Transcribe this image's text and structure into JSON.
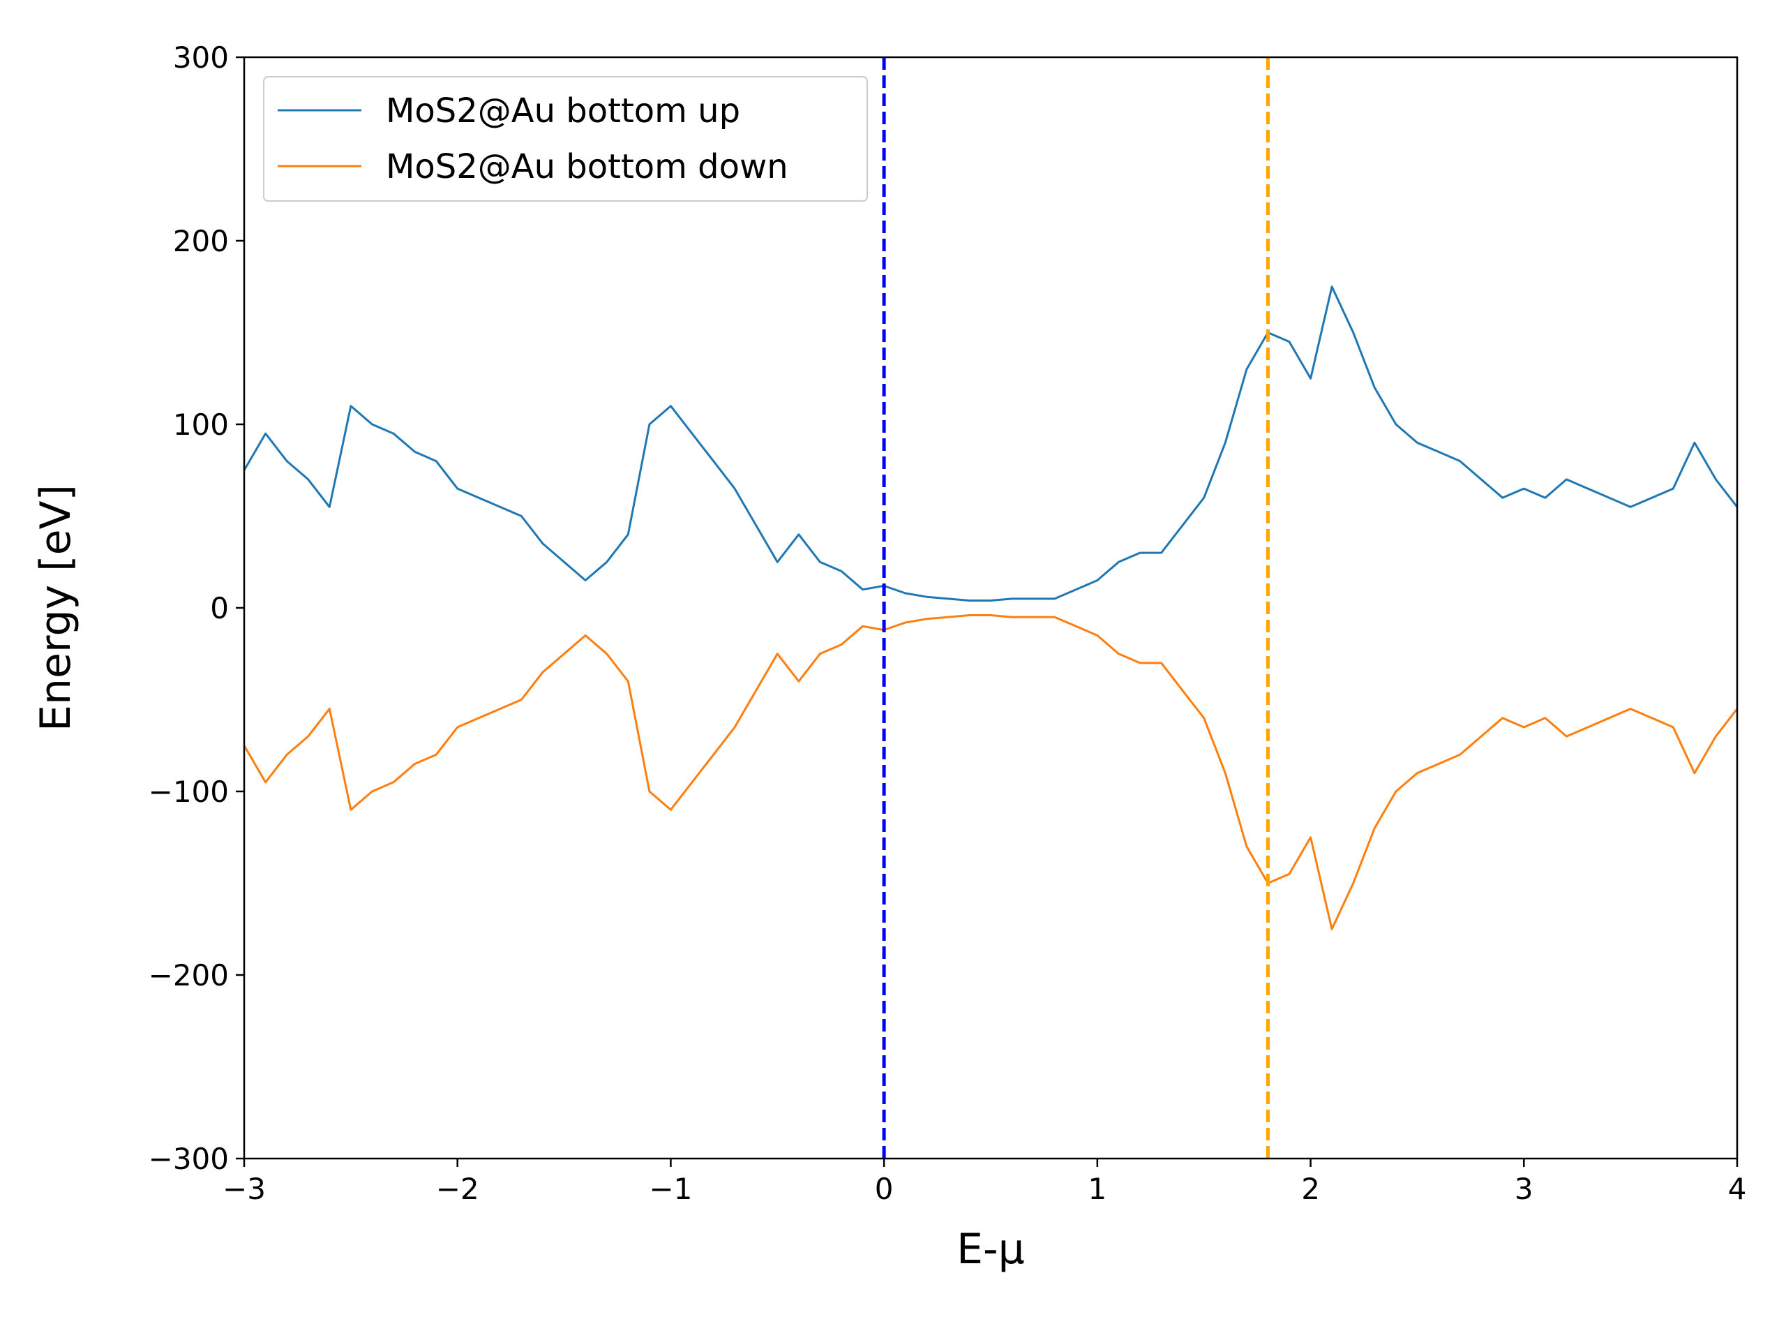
{
  "chart_data": {
    "type": "line",
    "title": "",
    "xlabel": "E-μ",
    "ylabel": "Energy [eV]",
    "xlim": [
      -3,
      4
    ],
    "ylim": [
      -300,
      300
    ],
    "xticks": [
      -3,
      -2,
      -1,
      0,
      1,
      2,
      3,
      4
    ],
    "xtick_labels": [
      "−3",
      "−2",
      "−1",
      "0",
      "1",
      "2",
      "3",
      "4"
    ],
    "yticks": [
      -300,
      -200,
      -100,
      0,
      100,
      200,
      300
    ],
    "ytick_labels": [
      "−300",
      "−200",
      "−100",
      "0",
      "100",
      "200",
      "300"
    ],
    "grid": false,
    "legend_position": "top-left",
    "series": [
      {
        "name": "MoS2@Au bottom up",
        "color": "#1f77b4",
        "x": [
          -3.0,
          -2.9,
          -2.8,
          -2.7,
          -2.6,
          -2.5,
          -2.4,
          -2.3,
          -2.2,
          -2.1,
          -2.0,
          -1.9,
          -1.8,
          -1.7,
          -1.6,
          -1.5,
          -1.4,
          -1.3,
          -1.2,
          -1.1,
          -1.0,
          -0.9,
          -0.8,
          -0.7,
          -0.6,
          -0.5,
          -0.4,
          -0.3,
          -0.2,
          -0.1,
          0.0,
          0.1,
          0.2,
          0.3,
          0.4,
          0.5,
          0.6,
          0.7,
          0.8,
          0.9,
          1.0,
          1.1,
          1.2,
          1.3,
          1.4,
          1.5,
          1.6,
          1.7,
          1.8,
          1.9,
          2.0,
          2.1,
          2.2,
          2.3,
          2.4,
          2.5,
          2.6,
          2.7,
          2.8,
          2.9,
          3.0,
          3.1,
          3.2,
          3.3,
          3.4,
          3.5,
          3.6,
          3.7,
          3.8,
          3.9,
          4.0
        ],
        "y": [
          75,
          95,
          80,
          70,
          55,
          110,
          100,
          95,
          85,
          80,
          65,
          60,
          55,
          50,
          35,
          25,
          15,
          25,
          40,
          100,
          110,
          95,
          80,
          65,
          45,
          25,
          40,
          25,
          20,
          10,
          12,
          8,
          6,
          5,
          4,
          4,
          5,
          5,
          5,
          10,
          15,
          25,
          30,
          30,
          45,
          60,
          90,
          130,
          150,
          145,
          125,
          175,
          150,
          120,
          100,
          90,
          85,
          80,
          70,
          60,
          65,
          60,
          70,
          65,
          60,
          55,
          60,
          65,
          90,
          70,
          55
        ]
      },
      {
        "name": "MoS2@Au bottom down",
        "color": "#ff7f0e",
        "x": [
          -3.0,
          -2.9,
          -2.8,
          -2.7,
          -2.6,
          -2.5,
          -2.4,
          -2.3,
          -2.2,
          -2.1,
          -2.0,
          -1.9,
          -1.8,
          -1.7,
          -1.6,
          -1.5,
          -1.4,
          -1.3,
          -1.2,
          -1.1,
          -1.0,
          -0.9,
          -0.8,
          -0.7,
          -0.6,
          -0.5,
          -0.4,
          -0.3,
          -0.2,
          -0.1,
          0.0,
          0.1,
          0.2,
          0.3,
          0.4,
          0.5,
          0.6,
          0.7,
          0.8,
          0.9,
          1.0,
          1.1,
          1.2,
          1.3,
          1.4,
          1.5,
          1.6,
          1.7,
          1.8,
          1.9,
          2.0,
          2.1,
          2.2,
          2.3,
          2.4,
          2.5,
          2.6,
          2.7,
          2.8,
          2.9,
          3.0,
          3.1,
          3.2,
          3.3,
          3.4,
          3.5,
          3.6,
          3.7,
          3.8,
          3.9,
          4.0
        ],
        "y": [
          -75,
          -95,
          -80,
          -70,
          -55,
          -110,
          -100,
          -95,
          -85,
          -80,
          -65,
          -60,
          -55,
          -50,
          -35,
          -25,
          -15,
          -25,
          -40,
          -100,
          -110,
          -95,
          -80,
          -65,
          -45,
          -25,
          -40,
          -25,
          -20,
          -10,
          -12,
          -8,
          -6,
          -5,
          -4,
          -4,
          -5,
          -5,
          -5,
          -10,
          -15,
          -25,
          -30,
          -30,
          -45,
          -60,
          -90,
          -130,
          -150,
          -145,
          -125,
          -175,
          -150,
          -120,
          -100,
          -90,
          -85,
          -80,
          -70,
          -60,
          -65,
          -60,
          -70,
          -65,
          -60,
          -55,
          -60,
          -65,
          -90,
          -70,
          -55
        ]
      }
    ],
    "reference_lines": [
      {
        "x": 0.0,
        "color": "#0000ff",
        "style": "dashed"
      },
      {
        "x": 1.8,
        "color": "#ffa500",
        "style": "dashed"
      }
    ]
  }
}
